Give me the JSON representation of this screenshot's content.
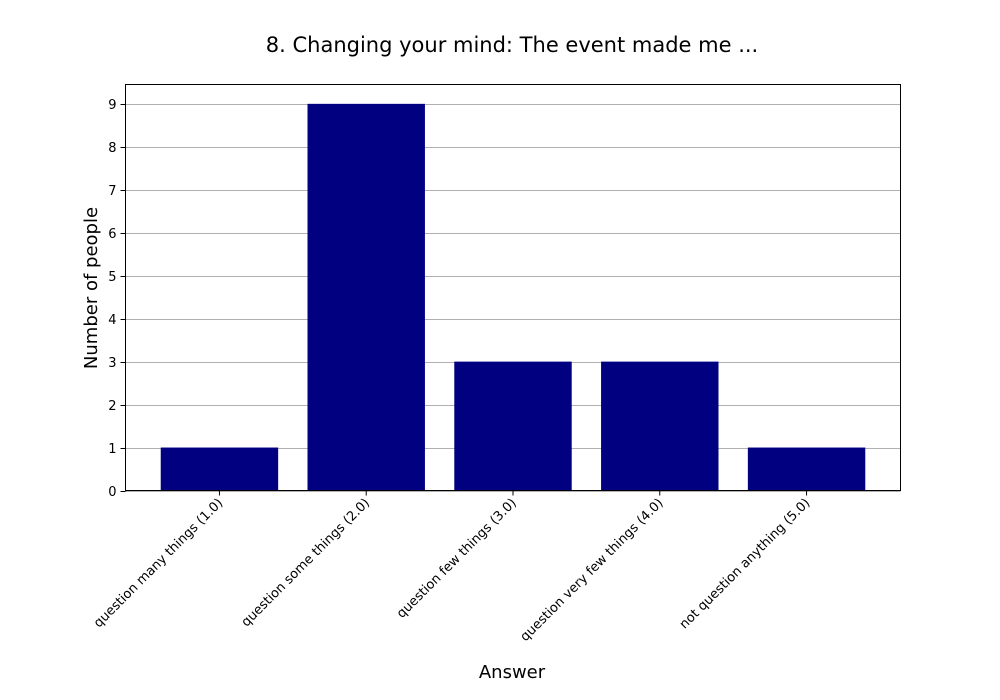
{
  "chart_data": {
    "type": "bar",
    "title": "8. Changing your mind: The event made me ...",
    "xlabel": "Answer",
    "ylabel": "Number of people",
    "categories": [
      "question many things (1.0)",
      "question some things (2.0)",
      "question few things (3.0)",
      "question very few things (4.0)",
      "not question anything (5.0)"
    ],
    "values": [
      1,
      9,
      3,
      3,
      1
    ],
    "ylim": [
      0,
      9.45
    ],
    "yticks": [
      "0",
      "1",
      "2",
      "3",
      "4",
      "5",
      "6",
      "7",
      "8",
      "9"
    ],
    "grid": "y",
    "bar_color": "#000080"
  }
}
